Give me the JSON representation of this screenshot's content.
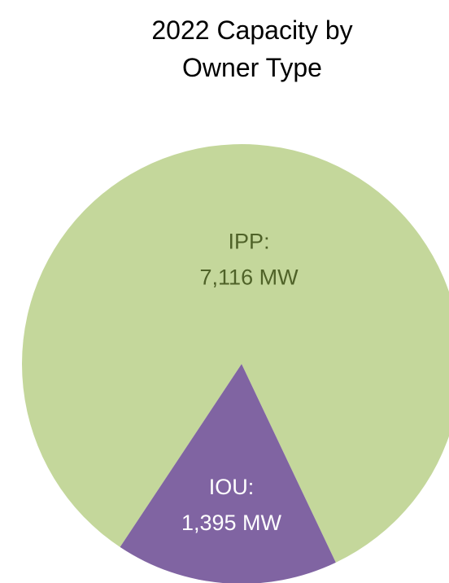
{
  "chart_data": {
    "type": "pie",
    "title": "2022 Capacity by Owner Type",
    "categories": [
      "IPP:",
      "IOU:"
    ],
    "values": [
      7116,
      1395
    ],
    "value_labels": [
      "7,116 MW",
      "1,395 MW"
    ],
    "colors": [
      "#c4d79b",
      "#8064a2"
    ]
  }
}
